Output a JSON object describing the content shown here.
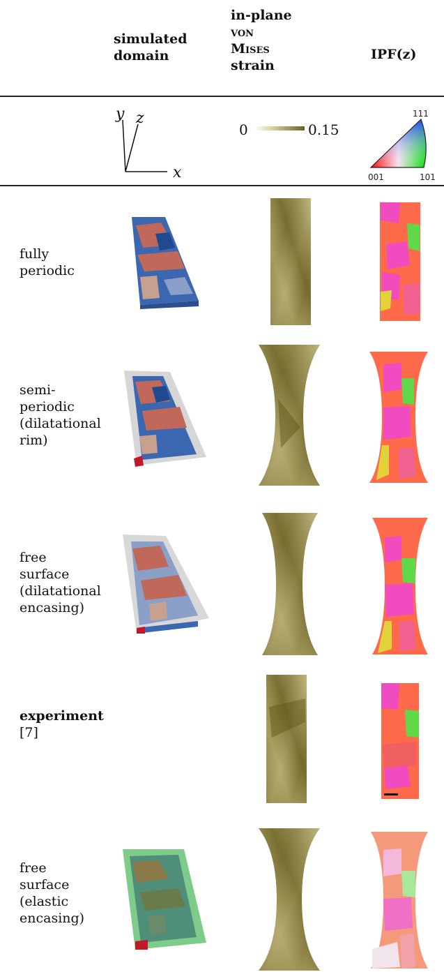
{
  "header": {
    "col1": [
      "simulated",
      "domain"
    ],
    "col2_line1": "in-plane",
    "col2_line2": "von",
    "col2_line3": "Mises",
    "col2_line4": "strain",
    "col3": "IPF(z)"
  },
  "legend": {
    "axes": {
      "y": "y",
      "z": "z",
      "x": "x"
    },
    "strain_min": "0",
    "strain_max": "0.15",
    "ipf_corners": {
      "top": "111",
      "left": "001",
      "right": "101"
    }
  },
  "rows": [
    {
      "label_lines": [
        "fully",
        "periodic"
      ],
      "bold_first": false
    },
    {
      "label_lines": [
        "semi-",
        "periodic",
        "(dilatational",
        "rim)"
      ],
      "bold_first": false
    },
    {
      "label_lines": [
        "free",
        "surface",
        "(dilatational",
        "encasing)"
      ],
      "bold_first": false
    },
    {
      "label_lines": [
        "experiment",
        "[7]"
      ],
      "bold_first": true
    },
    {
      "label_lines": [
        "free",
        "surface",
        "(elastic",
        "encasing)"
      ],
      "bold_first": false
    }
  ],
  "colors": {
    "strain_dark": "#6b6220",
    "strain_light": "#e8e2b8",
    "grain_blue": "#3a67b0",
    "grain_red": "#c0695a",
    "ipf_red": "#ff6b4a",
    "ipf_magenta": "#f04cc0",
    "ipf_green": "#5fd94a",
    "elastic_green": "#7ecb8a"
  }
}
